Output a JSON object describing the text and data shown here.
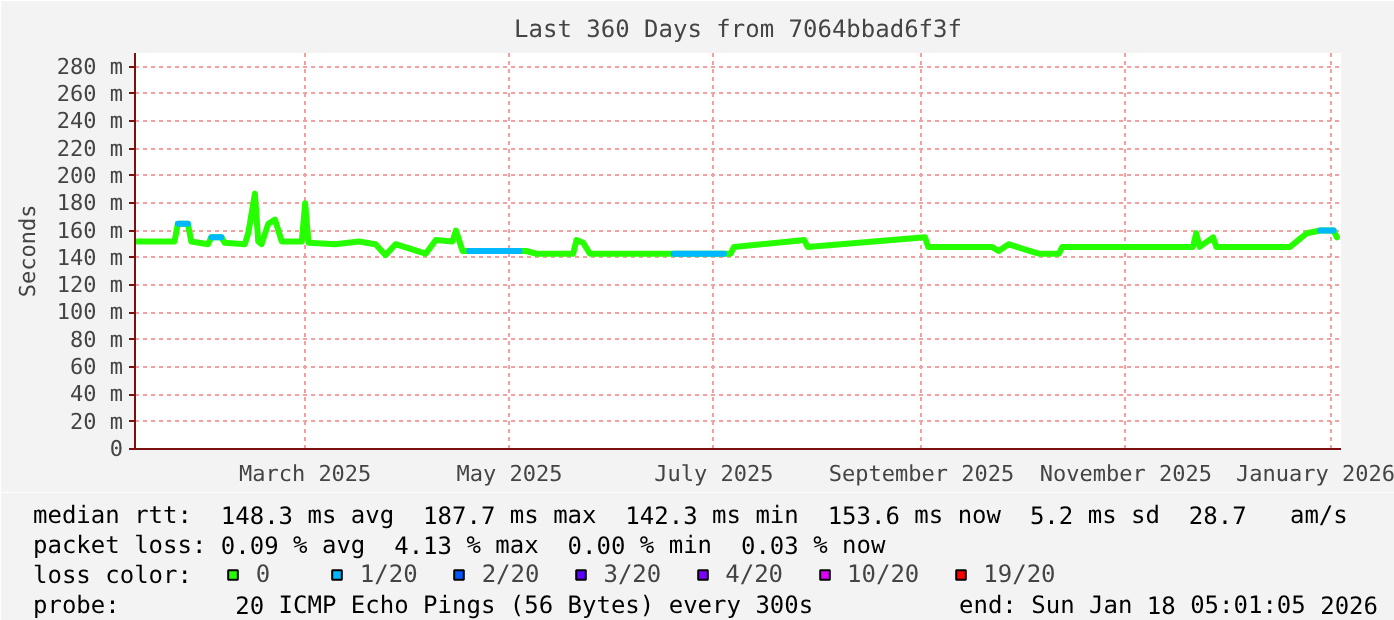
{
  "chart_data": {
    "type": "line",
    "title": "Last 360 Days from 7064bbad6f3f",
    "ylabel": "Seconds",
    "xlim": [
      "2025-01-23T05:01",
      "2026-01-18T05:01"
    ],
    "xticks": [
      {
        "value": "2025-03-15",
        "label": "March 2025"
      },
      {
        "value": "2025-05-15",
        "label": "May 2025"
      },
      {
        "value": "2025-07-15",
        "label": "July 2025"
      },
      {
        "value": "2025-09-15",
        "label": "September 2025"
      },
      {
        "value": "2025-11-15",
        "label": "November 2025"
      },
      {
        "value": "2026-01-15",
        "label": "January 2026"
      }
    ],
    "ylim": [
      0,
      290
    ],
    "yticks": [
      0,
      {
        "value": 20,
        "label": "20 m"
      },
      {
        "value": 40,
        "label": "40 m"
      },
      {
        "value": 60,
        "label": "60 m"
      },
      {
        "value": 80,
        "label": "80 m"
      },
      {
        "value": 100,
        "label": "100 m"
      },
      {
        "value": 120,
        "label": "120 m"
      },
      {
        "value": 140,
        "label": "140 m"
      },
      {
        "value": 160,
        "label": "160 m"
      },
      {
        "value": 180,
        "label": "180 m"
      },
      {
        "value": 200,
        "label": "200 m"
      },
      {
        "value": 220,
        "label": "220 m"
      },
      {
        "value": 240,
        "label": "240 m"
      },
      {
        "value": 260,
        "label": "260 m"
      },
      {
        "value": 280,
        "label": "280 m"
      }
    ],
    "grid": true,
    "legend": "bottom",
    "legend_title": "loss color:",
    "marker": "none",
    "line_style": "solid",
    "series": [
      {
        "name": "0",
        "color": "#26ff00",
        "x": [
          "2025-01-24",
          "2025-02-04",
          "2025-02-05",
          "2025-02-07",
          "2025-02-08",
          "2025-02-09",
          "2025-02-14",
          "2025-02-15",
          "2025-02-18",
          "2025-02-19",
          "2025-02-25",
          "2025-02-26",
          "2025-02-28",
          "2025-03-01",
          "2025-03-02",
          "2025-03-04",
          "2025-03-06",
          "2025-03-08",
          "2025-03-14",
          "2025-03-15",
          "2025-03-16",
          "2025-03-24",
          "2025-03-31",
          "2025-04-05",
          "2025-04-08",
          "2025-04-11",
          "2025-04-20",
          "2025-04-23",
          "2025-04-28",
          "2025-04-29",
          "2025-05-01",
          "2025-05-20",
          "2025-05-23",
          "2025-06-03",
          "2025-06-04",
          "2025-06-06",
          "2025-06-08",
          "2025-07-02",
          "2025-07-20",
          "2025-07-21",
          "2025-08-11",
          "2025-08-12",
          "2025-09-16",
          "2025-09-17",
          "2025-10-06",
          "2025-10-08",
          "2025-10-11",
          "2025-10-16",
          "2025-10-20",
          "2025-10-26",
          "2025-10-27",
          "2025-12-05",
          "2025-12-06",
          "2025-12-07",
          "2025-12-11",
          "2025-12-12",
          "2026-01-03",
          "2026-01-05",
          "2026-01-08",
          "2026-01-12",
          "2026-01-16",
          "2026-01-17"
        ],
        "values": [
          152,
          152,
          165,
          165,
          165,
          152,
          150,
          155,
          155,
          151,
          150,
          158,
          187,
          152,
          150,
          165,
          168,
          152,
          152,
          180,
          151,
          150,
          152,
          150,
          142,
          150,
          143,
          153,
          152,
          160,
          145,
          145,
          143,
          143,
          153,
          151,
          143,
          143,
          143,
          148,
          153,
          148,
          155,
          148,
          148,
          145,
          150,
          146,
          143,
          143,
          148,
          148,
          158,
          148,
          155,
          148,
          148,
          152,
          158,
          160,
          160,
          155
        ]
      },
      {
        "name": "1/20",
        "color": "#00b8ff",
        "x": [
          "2025-02-05",
          "2025-02-08",
          "2025-02-10",
          "2025-02-15",
          "2025-02-18",
          "2025-02-20",
          "2025-05-03",
          "2025-05-18",
          "2025-05-20",
          "2025-07-03",
          "2025-07-18",
          "2025-07-25",
          "2026-01-12",
          "2026-01-16"
        ],
        "values": [
          165,
          165,
          null,
          155,
          155,
          null,
          145,
          145,
          null,
          143,
          143,
          null,
          160,
          160
        ]
      },
      {
        "name": "2/20",
        "color": "#0059ff"
      },
      {
        "name": "3/20",
        "color": "#5e00ff"
      },
      {
        "name": "4/20",
        "color": "#7e00ff"
      },
      {
        "name": "10/20",
        "color": "#dd00ff"
      },
      {
        "name": "19/20",
        "color": "#ff0000"
      }
    ],
    "annotations": [
      "median rtt:  148.3 ms avg  187.7 ms max  142.3 ms min  153.6 ms now  5.2 ms sd  28.7   am/s",
      "packet loss: 0.09 % avg  4.13 % max  0.00 % min  0.03 % now",
      "probe:        20 ICMP Echo Pings (56 Bytes) every 300s",
      "end: Sun Jan 18 05:01:05 2026"
    ]
  }
}
